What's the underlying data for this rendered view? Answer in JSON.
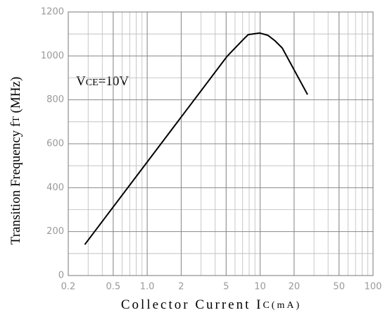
{
  "chart_data": {
    "type": "line",
    "xlabel": [
      "Collector Current I",
      "C",
      "(mA)"
    ],
    "ylabel": [
      "Transition Frequency  f",
      "T",
      "  (MHz)"
    ],
    "annotation": [
      "V",
      "CE",
      "=10V"
    ],
    "x": [
      0.28,
      5.1,
      7.1,
      7.85,
      9.9,
      11.7,
      13.6,
      15.7,
      26.3
    ],
    "series": [
      {
        "color": "#000000",
        "values": [
          141,
          998,
          1075,
          1097,
          1104,
          1094,
          1068,
          1036,
          824
        ]
      }
    ],
    "xlim": [
      0.2,
      100
    ],
    "xscale": "log",
    "xticks": [
      0.2,
      0.5,
      {
        "value": 1,
        "label": "1.0"
      },
      2,
      5,
      10,
      20,
      50,
      100
    ],
    "ylim": [
      0,
      1200
    ],
    "yticks": [
      0,
      200,
      400,
      600,
      800,
      1000,
      1200
    ],
    "grid": true
  }
}
